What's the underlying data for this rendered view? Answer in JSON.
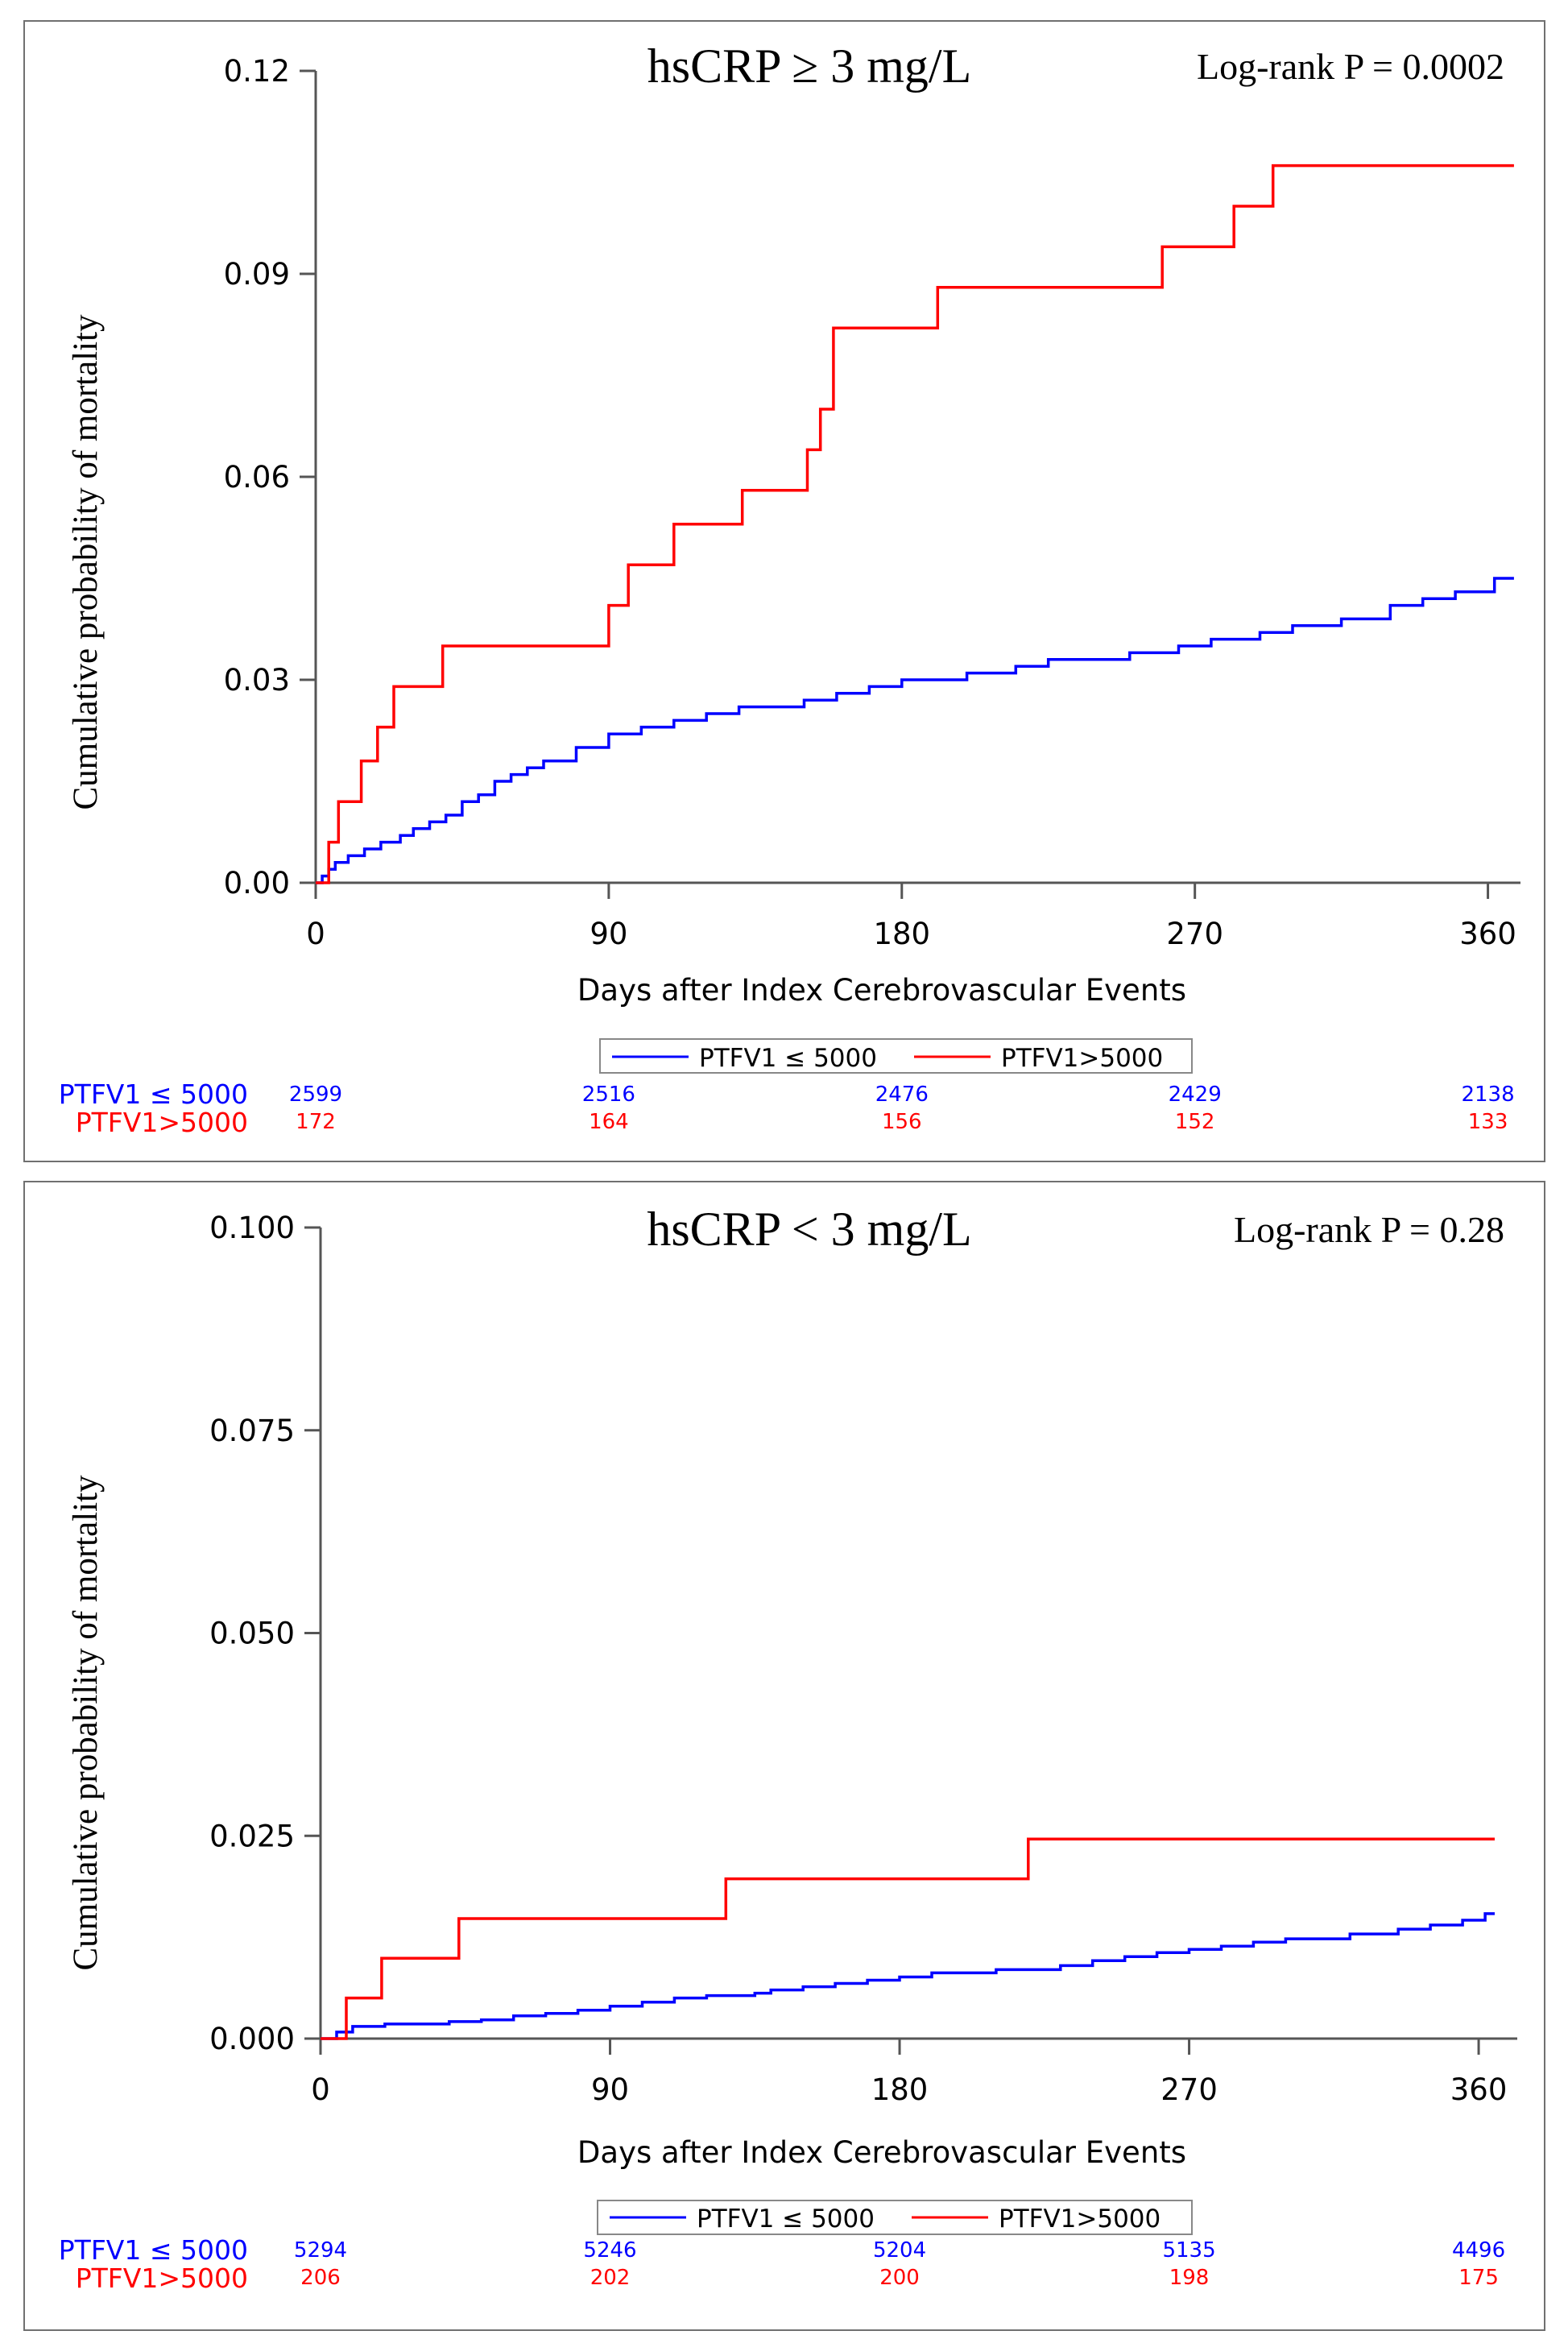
{
  "chart_data": [
    {
      "type": "line",
      "title": "hsCRP ≥ 3 mg/L",
      "annotation": "Log-rank P = 0.0002",
      "xlabel": "Days after Index Cerebrovascular Events",
      "ylabel": "Cumulative probability of mortality",
      "xlim": [
        0,
        370
      ],
      "ylim": [
        0,
        0.12
      ],
      "xticks": [
        0,
        90,
        180,
        270,
        360
      ],
      "xtick_labels": [
        "0",
        "90",
        "180",
        "270",
        "360"
      ],
      "yticks": [
        0,
        0.03,
        0.06,
        0.09,
        0.12
      ],
      "ytick_labels": [
        "0.00",
        "0.03",
        "0.06",
        "0.09",
        "0.12"
      ],
      "grid": false,
      "legend_position": "bottom",
      "series": [
        {
          "name": "PTFV1 ≤ 5000",
          "color": "#0000ff",
          "step": true,
          "points": [
            [
              0,
              0.0
            ],
            [
              2,
              0.001
            ],
            [
              4,
              0.002
            ],
            [
              6,
              0.003
            ],
            [
              10,
              0.004
            ],
            [
              15,
              0.005
            ],
            [
              20,
              0.006
            ],
            [
              26,
              0.007
            ],
            [
              30,
              0.008
            ],
            [
              35,
              0.009
            ],
            [
              40,
              0.01
            ],
            [
              45,
              0.012
            ],
            [
              50,
              0.013
            ],
            [
              55,
              0.015
            ],
            [
              60,
              0.016
            ],
            [
              65,
              0.017
            ],
            [
              70,
              0.018
            ],
            [
              80,
              0.02
            ],
            [
              90,
              0.022
            ],
            [
              100,
              0.023
            ],
            [
              110,
              0.024
            ],
            [
              120,
              0.025
            ],
            [
              130,
              0.026
            ],
            [
              150,
              0.027
            ],
            [
              160,
              0.028
            ],
            [
              170,
              0.029
            ],
            [
              180,
              0.03
            ],
            [
              200,
              0.031
            ],
            [
              215,
              0.032
            ],
            [
              225,
              0.033
            ],
            [
              250,
              0.034
            ],
            [
              265,
              0.035
            ],
            [
              275,
              0.036
            ],
            [
              290,
              0.037
            ],
            [
              300,
              0.038
            ],
            [
              315,
              0.039
            ],
            [
              330,
              0.041
            ],
            [
              340,
              0.042
            ],
            [
              350,
              0.043
            ],
            [
              362,
              0.045
            ],
            [
              368,
              0.045
            ]
          ]
        },
        {
          "name": "PTFV1>5000",
          "color": "#ff0000",
          "step": true,
          "points": [
            [
              0,
              0.0
            ],
            [
              4,
              0.006
            ],
            [
              7,
              0.012
            ],
            [
              14,
              0.018
            ],
            [
              19,
              0.023
            ],
            [
              24,
              0.029
            ],
            [
              39,
              0.035
            ],
            [
              90,
              0.041
            ],
            [
              96,
              0.047
            ],
            [
              110,
              0.053
            ],
            [
              131,
              0.058
            ],
            [
              151,
              0.064
            ],
            [
              155,
              0.07
            ],
            [
              159,
              0.082
            ],
            [
              191,
              0.088
            ],
            [
              260,
              0.094
            ],
            [
              282,
              0.1
            ],
            [
              294,
              0.106
            ],
            [
              368,
              0.106
            ]
          ]
        }
      ],
      "risk_table": {
        "rows": [
          {
            "label": "PTFV1 ≤ 5000",
            "color": "#0000ff",
            "values": [
              "2599",
              "2516",
              "2476",
              "2429",
              "2138"
            ]
          },
          {
            "label": "PTFV1>5000",
            "color": "#ff0000",
            "values": [
              "172",
              "164",
              "156",
              "152",
              "133"
            ]
          }
        ]
      }
    },
    {
      "type": "line",
      "title": "hsCRP < 3 mg/L",
      "annotation": "Log-rank P = 0.28",
      "xlabel": "Days after Index Cerebrovascular Events",
      "ylabel": "Cumulative probability of mortality",
      "xlim": [
        0,
        372
      ],
      "ylim": [
        0,
        0.1
      ],
      "xticks": [
        0,
        90,
        180,
        270,
        360
      ],
      "xtick_labels": [
        "0",
        "90",
        "180",
        "270",
        "360"
      ],
      "yticks": [
        0,
        0.025,
        0.05,
        0.075,
        0.1
      ],
      "ytick_labels": [
        "0.000",
        "0.025",
        "0.050",
        "0.075",
        "0.100"
      ],
      "grid": false,
      "legend_position": "bottom",
      "series": [
        {
          "name": "PTFV1 ≤ 5000",
          "color": "#0000ff",
          "step": true,
          "points": [
            [
              0,
              0.0
            ],
            [
              5,
              0.0008
            ],
            [
              10,
              0.0015
            ],
            [
              20,
              0.0018
            ],
            [
              40,
              0.0021
            ],
            [
              50,
              0.0023
            ],
            [
              60,
              0.0028
            ],
            [
              70,
              0.0031
            ],
            [
              80,
              0.0035
            ],
            [
              90,
              0.004
            ],
            [
              100,
              0.0045
            ],
            [
              110,
              0.005
            ],
            [
              120,
              0.0053
            ],
            [
              135,
              0.0056
            ],
            [
              140,
              0.006
            ],
            [
              150,
              0.0064
            ],
            [
              160,
              0.0068
            ],
            [
              170,
              0.0072
            ],
            [
              180,
              0.0076
            ],
            [
              190,
              0.0081
            ],
            [
              210,
              0.0085
            ],
            [
              230,
              0.009
            ],
            [
              240,
              0.0096
            ],
            [
              250,
              0.0101
            ],
            [
              260,
              0.0106
            ],
            [
              270,
              0.011
            ],
            [
              280,
              0.0114
            ],
            [
              290,
              0.0119
            ],
            [
              300,
              0.0123
            ],
            [
              320,
              0.0129
            ],
            [
              335,
              0.0135
            ],
            [
              345,
              0.014
            ],
            [
              355,
              0.0146
            ],
            [
              362,
              0.0154
            ],
            [
              365,
              0.0154
            ]
          ]
        },
        {
          "name": "PTFV1>5000",
          "color": "#ff0000",
          "step": true,
          "points": [
            [
              0,
              0.0
            ],
            [
              8,
              0.005
            ],
            [
              19,
              0.0099
            ],
            [
              43,
              0.0148
            ],
            [
              126,
              0.0197
            ],
            [
              220,
              0.0246
            ],
            [
              365,
              0.0246
            ]
          ]
        }
      ],
      "risk_table": {
        "rows": [
          {
            "label": "PTFV1 ≤ 5000",
            "color": "#0000ff",
            "values": [
              "5294",
              "5246",
              "5204",
              "5135",
              "4496"
            ]
          },
          {
            "label": "PTFV1>5000",
            "color": "#ff0000",
            "values": [
              "206",
              "202",
              "200",
              "198",
              "175"
            ]
          }
        ]
      }
    }
  ]
}
